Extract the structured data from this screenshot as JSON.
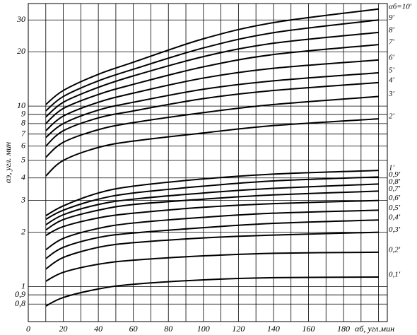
{
  "chart_data": {
    "type": "line",
    "y_label": "αэ, угл. мин",
    "x_label": "αб, угл.мин",
    "ylog": true,
    "grid": true,
    "xlim": [
      0,
      205
    ],
    "ylim": [
      0.64,
      37
    ],
    "xticks": [
      0,
      20,
      40,
      60,
      80,
      100,
      120,
      140,
      160,
      180
    ],
    "xgrid_minor": [
      10,
      30,
      50,
      70,
      90,
      110,
      130,
      150,
      170,
      190,
      200
    ],
    "yticks": [
      {
        "value": 0.8,
        "label": "0,8"
      },
      {
        "value": 0.9,
        "label": "0,9"
      },
      1,
      2,
      3,
      4,
      5,
      6,
      7,
      8,
      9,
      10,
      20,
      30
    ],
    "x": [
      10,
      20,
      40,
      60,
      100,
      140,
      200
    ],
    "series": [
      {
        "name": "αб=10'",
        "color": "#000000",
        "values": [
          10.2,
          12.2,
          15,
          17.5,
          23.6,
          29,
          34.5
        ]
      },
      {
        "name": "9'",
        "color": "#000000",
        "values": [
          9.4,
          11.3,
          13.8,
          16,
          21,
          25.5,
          30
        ]
      },
      {
        "name": "8'",
        "color": "#000000",
        "values": [
          8.7,
          10.5,
          12.7,
          14.7,
          18.8,
          22.3,
          25.6
        ]
      },
      {
        "name": "7'",
        "color": "#000000",
        "values": [
          8,
          9.7,
          11.6,
          13.2,
          16.5,
          19.3,
          21.9
        ]
      },
      {
        "name": "6'",
        "color": "#000000",
        "values": [
          7.3,
          8.8,
          10.5,
          11.8,
          14.3,
          16.2,
          18
        ]
      },
      {
        "name": "5'",
        "color": "#000000",
        "values": [
          6.7,
          8,
          9.5,
          10.5,
          12.4,
          13.8,
          15.3
        ]
      },
      {
        "name": "4'",
        "color": "#000000",
        "values": [
          6,
          7.3,
          8.6,
          9.4,
          11,
          12.2,
          13.5
        ]
      },
      {
        "name": "3'",
        "color": "#000000",
        "values": [
          5.2,
          6.3,
          7.4,
          8.1,
          9.2,
          10.2,
          11.3
        ]
      },
      {
        "name": "2'",
        "color": "#000000",
        "values": [
          4.1,
          5,
          5.9,
          6.4,
          7.1,
          7.8,
          8.5
        ]
      },
      {
        "name": "1'",
        "color": "#000000",
        "values": [
          2.47,
          2.8,
          3.3,
          3.6,
          3.95,
          4.2,
          4.4
        ]
      },
      {
        "name": "0,9'",
        "color": "#000000",
        "values": [
          2.36,
          2.65,
          3.05,
          3.3,
          3.6,
          3.85,
          4.05
        ]
      },
      {
        "name": "0,8'",
        "color": "#000000",
        "values": [
          2.2,
          2.5,
          2.85,
          3.05,
          3.3,
          3.5,
          3.7
        ]
      },
      {
        "name": "0,7'",
        "color": "#000000",
        "values": [
          2.06,
          2.35,
          2.65,
          2.85,
          3.05,
          3.22,
          3.38
        ]
      },
      {
        "name": "0,6'",
        "color": "#000000",
        "values": [
          1.92,
          2.15,
          2.4,
          2.55,
          2.75,
          2.88,
          3.0
        ]
      },
      {
        "name": "0,5'",
        "color": "#000000",
        "values": [
          1.6,
          1.85,
          2.1,
          2.25,
          2.42,
          2.55,
          2.65
        ]
      },
      {
        "name": "0,4'",
        "color": "#000000",
        "values": [
          1.43,
          1.65,
          1.87,
          1.98,
          2.12,
          2.24,
          2.34
        ]
      },
      {
        "name": "0,3'",
        "color": "#000000",
        "values": [
          1.25,
          1.45,
          1.65,
          1.75,
          1.86,
          1.93,
          2.0
        ]
      },
      {
        "name": "0,2'",
        "color": "#000000",
        "values": [
          1.07,
          1.2,
          1.33,
          1.4,
          1.48,
          1.53,
          1.55
        ]
      },
      {
        "name": "0,1'",
        "color": "#000000",
        "values": [
          0.78,
          0.87,
          0.97,
          1.03,
          1.09,
          1.12,
          1.13
        ]
      }
    ]
  }
}
